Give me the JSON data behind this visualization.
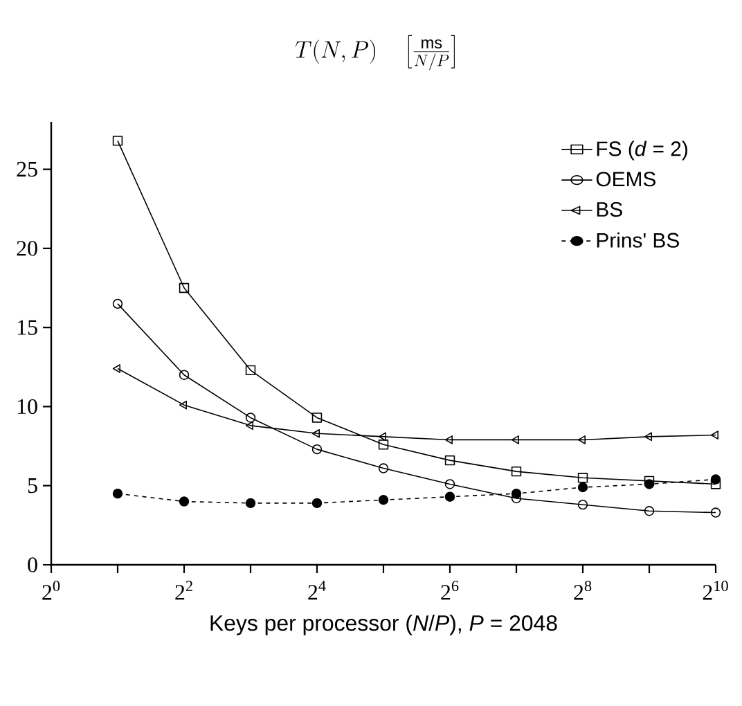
{
  "chart_data": {
    "type": "line",
    "title": "T(N,P) \\quad \\left[\\frac{\\mathrm{ms}}{N/P}\\right]",
    "xlabel": "Keys per processor (*N*/*P*), *P* = 2048",
    "x": [
      2,
      4,
      8,
      16,
      32,
      64,
      128,
      256,
      512,
      1024
    ],
    "series": [
      {
        "name": "FS (*d* = 2)",
        "color": "#000000",
        "marker": "square",
        "line_style": "solid",
        "values": [
          26.8,
          17.5,
          12.3,
          9.3,
          7.6,
          6.6,
          5.9,
          5.5,
          5.3,
          5.1
        ]
      },
      {
        "name": "OEMS",
        "color": "#000000",
        "marker": "circle",
        "line_style": "solid",
        "values": [
          16.5,
          12.0,
          9.3,
          7.3,
          6.1,
          5.1,
          4.2,
          3.8,
          3.4,
          3.3
        ]
      },
      {
        "name": "BS",
        "color": "#000000",
        "marker": "triangle",
        "line_style": "solid",
        "values": [
          12.4,
          10.1,
          8.8,
          8.3,
          8.1,
          7.9,
          7.9,
          7.9,
          8.1,
          8.2
        ]
      },
      {
        "name": "Prins' BS",
        "color": "#000000",
        "marker": "circle",
        "line_style": "dashed",
        "values": [
          4.5,
          4.0,
          3.9,
          3.9,
          4.1,
          4.3,
          4.5,
          4.9,
          5.1,
          5.4
        ]
      }
    ],
    "log": "x",
    "xlim": [
      1,
      1024
    ],
    "ylim": [
      0,
      28
    ],
    "xticks": [
      {
        "value": 1,
        "label": "2$^{0}$"
      },
      {
        "value": 2,
        "label": null
      },
      {
        "value": 4,
        "label": "2$^{2}$"
      },
      {
        "value": 8,
        "label": null
      },
      {
        "value": 16,
        "label": "2$^{4}$"
      },
      {
        "value": 32,
        "label": null
      },
      {
        "value": 64,
        "label": "2$^{6}$"
      },
      {
        "value": 128,
        "label": null
      },
      {
        "value": 256,
        "label": "2$^{8}$"
      },
      {
        "value": 512,
        "label": null
      },
      {
        "value": 1024,
        "label": "2$^{10}$"
      }
    ],
    "yticks": [
      0,
      5,
      10,
      15,
      20,
      25
    ],
    "grid": false,
    "legend": "top right"
  }
}
